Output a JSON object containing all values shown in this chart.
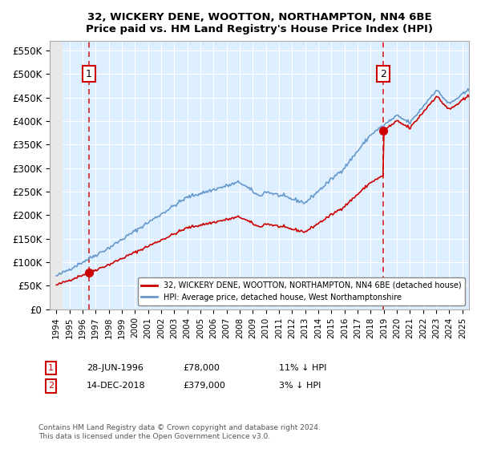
{
  "title1": "32, WICKERY DENE, WOOTTON, NORTHAMPTON, NN4 6BE",
  "title2": "Price paid vs. HM Land Registry's House Price Index (HPI)",
  "legend_line1": "32, WICKERY DENE, WOOTTON, NORTHAMPTON, NN4 6BE (detached house)",
  "legend_line2": "HPI: Average price, detached house, West Northamptonshire",
  "annotation1_label": "1",
  "annotation1_date": "28-JUN-1996",
  "annotation1_price": "£78,000",
  "annotation1_hpi": "11% ↓ HPI",
  "annotation2_label": "2",
  "annotation2_date": "14-DEC-2018",
  "annotation2_price": "£379,000",
  "annotation2_hpi": "3% ↓ HPI",
  "copyright": "Contains HM Land Registry data © Crown copyright and database right 2024.\nThis data is licensed under the Open Government Licence v3.0.",
  "sale1_year": 1996.49,
  "sale1_price": 78000,
  "sale2_year": 2018.95,
  "sale2_price": 379000,
  "red_color": "#cc0000",
  "blue_color": "#6699cc",
  "background_plot": "#ddeeff",
  "background_hatch": "#e8e8e8",
  "ylim": [
    0,
    570000
  ],
  "xlim_start": 1993.5,
  "xlim_end": 2025.5
}
